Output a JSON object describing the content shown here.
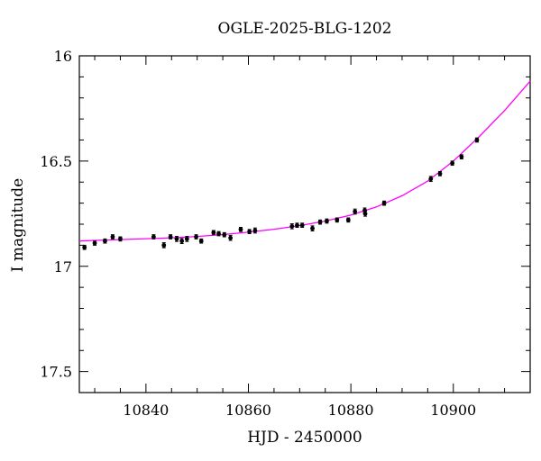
{
  "chart_data": {
    "type": "scatter",
    "title": "OGLE-2025-BLG-1202",
    "xlabel": "HJD - 2450000",
    "ylabel": "I magnitude",
    "xlim": [
      10827,
      10915
    ],
    "ylim": [
      17.6,
      16
    ],
    "y_inverted": true,
    "x_ticks": [
      10840,
      10860,
      10880,
      10900
    ],
    "y_ticks": [
      16,
      16.5,
      17,
      17.5
    ],
    "y_tick_labels": [
      "16",
      "16.5",
      "17",
      "17.5"
    ],
    "x_minor_step": 5,
    "y_minor_step": 0.1,
    "grid": false,
    "series": [
      {
        "marker": "point-with-errorbar",
        "color": "#000000",
        "x": [
          10828,
          10830,
          10832,
          10833.5,
          10835,
          10841.5,
          10843.5,
          10844.8,
          10846,
          10847,
          10848,
          10849.8,
          10850.8,
          10853.2,
          10854.2,
          10855.3,
          10856.5,
          10858.5,
          10860.2,
          10861.3,
          10868.5,
          10869.5,
          10870.5,
          10872.5,
          10874,
          10875.3,
          10877.3,
          10879.5,
          10880.8,
          10882.7,
          10882.8,
          10886.5,
          10895.6,
          10897.4,
          10899.8,
          10901.6,
          10904.6
        ],
        "y": [
          16.91,
          16.89,
          16.88,
          16.86,
          16.87,
          16.86,
          16.9,
          16.86,
          16.87,
          16.88,
          16.87,
          16.86,
          16.88,
          16.84,
          16.845,
          16.85,
          16.865,
          16.825,
          16.835,
          16.83,
          16.81,
          16.805,
          16.805,
          16.82,
          16.79,
          16.785,
          16.78,
          16.78,
          16.74,
          16.735,
          16.75,
          16.7,
          16.585,
          16.56,
          16.51,
          16.48,
          16.4
        ],
        "yerr": [
          0.01,
          0.01,
          0.01,
          0.01,
          0.01,
          0.01,
          0.012,
          0.01,
          0.012,
          0.012,
          0.012,
          0.01,
          0.01,
          0.01,
          0.01,
          0.01,
          0.012,
          0.01,
          0.01,
          0.012,
          0.012,
          0.01,
          0.01,
          0.012,
          0.01,
          0.01,
          0.01,
          0.01,
          0.012,
          0.012,
          0.012,
          0.01,
          0.012,
          0.01,
          0.01,
          0.01,
          0.01
        ]
      },
      {
        "type": "line",
        "color": "#ff00ff",
        "x": [
          10827,
          10830,
          10835,
          10840,
          10845,
          10850,
          10855,
          10860,
          10865,
          10870,
          10875,
          10880,
          10885,
          10890,
          10895,
          10900,
          10905,
          10910,
          10915
        ],
        "y": [
          16.88,
          16.877,
          16.873,
          16.869,
          16.865,
          16.858,
          16.849,
          16.838,
          16.824,
          16.807,
          16.785,
          16.757,
          16.718,
          16.665,
          16.595,
          16.5,
          16.385,
          16.26,
          16.12
        ]
      }
    ]
  }
}
